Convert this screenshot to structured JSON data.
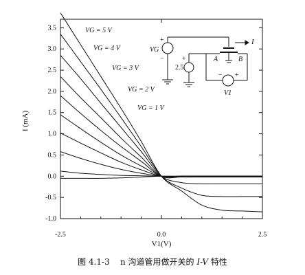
{
  "chart_data": {
    "type": "line",
    "xlabel": "V1(V)",
    "ylabel": "I (mA)",
    "xlim": [
      -2.5,
      2.5
    ],
    "ylim": [
      -1.0,
      3.7
    ],
    "x_ticks": [
      "-2.5",
      "0.0",
      "2.5"
    ],
    "y_ticks": [
      "3.5",
      "3.0",
      "2.5",
      "2.0",
      "1.5",
      "1.0",
      "0.5",
      "0.0",
      "-0.5",
      "-1.0"
    ],
    "grid": false,
    "series_labels": [
      "VG = 5 V",
      "VG = 4 V",
      "VG = 3 V",
      "VG = 2 V",
      "VG = 1 V"
    ],
    "series": [
      {
        "x": [
          -2.5,
          -2.0,
          -1.5,
          -1.0,
          -0.5,
          0.0,
          0.5,
          1.0,
          1.5,
          2.0,
          2.5
        ],
        "values": [
          3.85,
          3.1,
          2.35,
          1.6,
          0.82,
          0.0,
          -0.35,
          -0.68,
          -0.8,
          -0.82,
          -0.84
        ]
      },
      {
        "x": [
          -2.5,
          -2.0,
          -1.5,
          -1.0,
          -0.5,
          0.0,
          0.5,
          1.0,
          1.5,
          2.0,
          2.5
        ],
        "values": [
          3.35,
          2.7,
          2.05,
          1.38,
          0.7,
          0.0,
          -0.28,
          -0.45,
          -0.48,
          -0.48,
          -0.48
        ]
      },
      {
        "x": [
          -2.5,
          -2.0,
          -1.5,
          -1.0,
          -0.5,
          0.0,
          0.5,
          1.0,
          1.5,
          2.0,
          2.5
        ],
        "values": [
          2.85,
          2.3,
          1.72,
          1.15,
          0.58,
          0.0,
          -0.15,
          -0.18,
          -0.18,
          -0.18,
          -0.18
        ]
      },
      {
        "x": [
          -2.5,
          -2.0,
          -1.5,
          -1.0,
          -0.5,
          0.0,
          0.5,
          1.0,
          1.5,
          2.0,
          2.5
        ],
        "values": [
          2.35,
          1.85,
          1.38,
          0.9,
          0.45,
          0.0,
          -0.02,
          -0.02,
          -0.02,
          -0.02,
          -0.02
        ]
      },
      {
        "x": [
          -2.5,
          -2.0,
          -1.5,
          -1.0,
          -0.5,
          0.0,
          0.5,
          1.0,
          1.5,
          2.0,
          2.5
        ],
        "values": [
          1.9,
          1.48,
          1.08,
          0.7,
          0.35,
          0.0,
          0.0,
          0.0,
          0.0,
          0.0,
          0.0
        ]
      },
      {
        "x": [
          -2.5,
          -2.0,
          -1.5,
          -1.0,
          -0.5,
          0.0,
          0.5,
          1.0,
          1.5,
          2.0,
          2.5
        ],
        "values": [
          1.45,
          1.12,
          0.8,
          0.5,
          0.24,
          0.0,
          0.0,
          0.0,
          0.0,
          0.0,
          0.0
        ]
      },
      {
        "x": [
          -2.5,
          -2.0,
          -1.5,
          -1.0,
          -0.5,
          0.0,
          0.5,
          1.0,
          1.5,
          2.0,
          2.5
        ],
        "values": [
          1.02,
          0.78,
          0.55,
          0.33,
          0.15,
          0.0,
          0.0,
          0.0,
          0.0,
          0.0,
          0.0
        ]
      },
      {
        "x": [
          -2.5,
          -2.0,
          -1.5,
          -1.0,
          -0.5,
          0.0,
          0.5,
          1.0,
          1.5,
          2.0,
          2.5
        ],
        "values": [
          0.58,
          0.42,
          0.28,
          0.16,
          0.07,
          0.0,
          0.0,
          0.0,
          0.0,
          0.0,
          0.0
        ]
      },
      {
        "x": [
          -2.5,
          -2.0,
          -1.5,
          -1.0,
          -0.5,
          0.0,
          0.5,
          1.0,
          1.5,
          2.0,
          2.5
        ],
        "values": [
          0.12,
          0.07,
          0.04,
          0.02,
          0.01,
          0.0,
          0.0,
          0.0,
          0.0,
          0.0,
          0.0
        ]
      },
      {
        "x": [
          -2.5,
          -2.0,
          -1.5,
          -1.0,
          -0.5,
          0.0,
          0.5,
          1.0,
          1.5,
          2.0,
          2.5
        ],
        "values": [
          -0.05,
          -0.05,
          -0.05,
          -0.04,
          -0.02,
          0.0,
          0.0,
          0.0,
          0.0,
          0.0,
          0.0
        ]
      }
    ]
  },
  "inset": {
    "vg_label": "VG",
    "source_value": "2.5",
    "node_a": "A",
    "node_b": "B",
    "current_label": "I",
    "v1_label": "V1",
    "plus": "+",
    "minus": "−"
  },
  "caption": {
    "prefix": "图 4.1-3",
    "text1": "n 沟道管用做开关的",
    "italic": "I-V",
    "text2": "特性"
  },
  "colors": {
    "ink": "#111111",
    "paper": "#ffffff"
  }
}
